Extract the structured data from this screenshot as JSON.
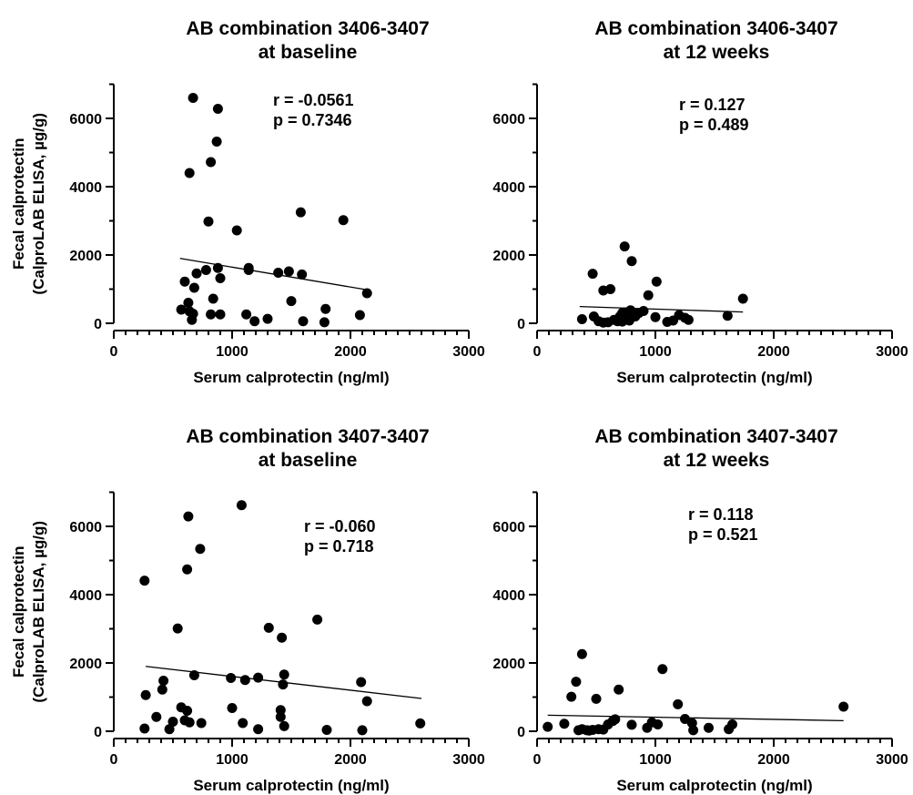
{
  "chart_data": [
    {
      "type": "scatter",
      "title": [
        "AB combination 3406-3407",
        "at baseline"
      ],
      "xlabel": "Serum calprotectin (ng/ml)",
      "ylabel": [
        "Fecal calprotectin",
        "(CalproLAB ELISA, µg/g)"
      ],
      "xlim": [
        0,
        3000
      ],
      "ylim": [
        0,
        7000
      ],
      "xticks": [
        0,
        1000,
        2000,
        3000
      ],
      "yticks": [
        0,
        2000,
        4000,
        6000
      ],
      "annotation": [
        "r = -0.0561",
        "p = 0.7346"
      ],
      "trendline": {
        "x": [
          560,
          2140
        ],
        "y": [
          1900,
          980
        ]
      },
      "points": {
        "x": [
          670,
          880,
          870,
          640,
          820,
          1580,
          1940,
          800,
          1040,
          600,
          900,
          780,
          1140,
          700,
          680,
          1390,
          1480,
          1590,
          1140,
          630,
          840,
          1500,
          880,
          570,
          1790,
          2140,
          640,
          820,
          900,
          670,
          1120,
          1300,
          1190,
          1600,
          1780,
          2080,
          660
        ],
        "y": [
          6600,
          6280,
          5320,
          4400,
          4720,
          3250,
          3020,
          2980,
          2720,
          1220,
          1320,
          1560,
          1620,
          1460,
          1040,
          1480,
          1520,
          1430,
          1560,
          600,
          720,
          650,
          1620,
          400,
          420,
          880,
          350,
          260,
          260,
          280,
          260,
          130,
          60,
          60,
          30,
          240,
          100
        ]
      }
    },
    {
      "type": "scatter",
      "title": [
        "AB combination 3406-3407",
        "at 12 weeks"
      ],
      "xlabel": "Serum calprotectin (ng/ml)",
      "ylabel": [],
      "xlim": [
        0,
        3000
      ],
      "ylim": [
        0,
        7000
      ],
      "xticks": [
        0,
        1000,
        2000,
        3000
      ],
      "yticks": [
        0,
        2000,
        4000,
        6000
      ],
      "annotation": [
        "r = 0.127",
        "p = 0.489"
      ],
      "trendline": {
        "x": [
          360,
          1740
        ],
        "y": [
          490,
          330
        ]
      },
      "points": {
        "x": [
          740,
          800,
          470,
          1010,
          560,
          620,
          940,
          720,
          790,
          1740,
          380,
          480,
          520,
          600,
          650,
          700,
          720,
          750,
          760,
          780,
          800,
          830,
          860,
          900,
          1000,
          1150,
          1200,
          1250,
          1280,
          1610,
          560,
          680,
          1100
        ],
        "y": [
          2250,
          1820,
          1450,
          1220,
          960,
          1000,
          820,
          300,
          380,
          720,
          120,
          200,
          60,
          30,
          100,
          200,
          50,
          320,
          150,
          80,
          280,
          200,
          300,
          360,
          180,
          80,
          240,
          160,
          100,
          220,
          20,
          60,
          40
        ]
      }
    },
    {
      "type": "scatter",
      "title": [
        "AB combination 3407-3407",
        "at baseline"
      ],
      "xlabel": "Serum calprotectin (ng/ml)",
      "ylabel": [
        "Fecal calprotectin",
        "(CalproLAB ELISA, µg/g)"
      ],
      "xlim": [
        0,
        3000
      ],
      "ylim": [
        0,
        7000
      ],
      "xticks": [
        0,
        1000,
        2000,
        3000
      ],
      "yticks": [
        0,
        2000,
        4000,
        6000
      ],
      "annotation": [
        "r = -0.060",
        "p = 0.718"
      ],
      "trendline": {
        "x": [
          270,
          2600
        ],
        "y": [
          1900,
          960
        ]
      },
      "points": {
        "x": [
          1080,
          630,
          730,
          260,
          620,
          1720,
          540,
          1310,
          1420,
          270,
          420,
          990,
          1110,
          1220,
          1440,
          1430,
          680,
          2090,
          2140,
          410,
          570,
          620,
          1000,
          1410,
          360,
          500,
          600,
          640,
          740,
          1090,
          1440,
          1220,
          1800,
          2100,
          2590,
          260,
          470,
          1410
        ],
        "y": [
          6620,
          6290,
          5340,
          4410,
          4740,
          3270,
          3010,
          3030,
          2740,
          1060,
          1480,
          1560,
          1500,
          1570,
          1660,
          1370,
          1640,
          1440,
          880,
          1220,
          700,
          600,
          680,
          420,
          420,
          280,
          320,
          260,
          240,
          240,
          150,
          60,
          40,
          30,
          230,
          80,
          60,
          620
        ]
      }
    },
    {
      "type": "scatter",
      "title": [
        "AB combination 3407-3407",
        "at 12 weeks"
      ],
      "xlabel": "Serum calprotectin (ng/ml)",
      "ylabel": [],
      "xlim": [
        0,
        3000
      ],
      "ylim": [
        0,
        7000
      ],
      "xticks": [
        0,
        1000,
        2000,
        3000
      ],
      "yticks": [
        0,
        2000,
        4000,
        6000
      ],
      "annotation": [
        "r = 0.118",
        "p = 0.521"
      ],
      "trendline": {
        "x": [
          90,
          2590
        ],
        "y": [
          470,
          310
        ]
      },
      "points": {
        "x": [
          380,
          1060,
          330,
          290,
          690,
          500,
          1190,
          2590,
          90,
          230,
          380,
          420,
          470,
          520,
          560,
          600,
          640,
          660,
          800,
          930,
          970,
          1020,
          1250,
          1320,
          1310,
          1450,
          1620,
          1650,
          350,
          440
        ],
        "y": [
          2260,
          1820,
          1450,
          1010,
          1220,
          950,
          790,
          720,
          130,
          220,
          60,
          30,
          40,
          60,
          50,
          200,
          300,
          350,
          190,
          100,
          260,
          200,
          360,
          30,
          240,
          100,
          60,
          200,
          30,
          20
        ]
      }
    }
  ]
}
